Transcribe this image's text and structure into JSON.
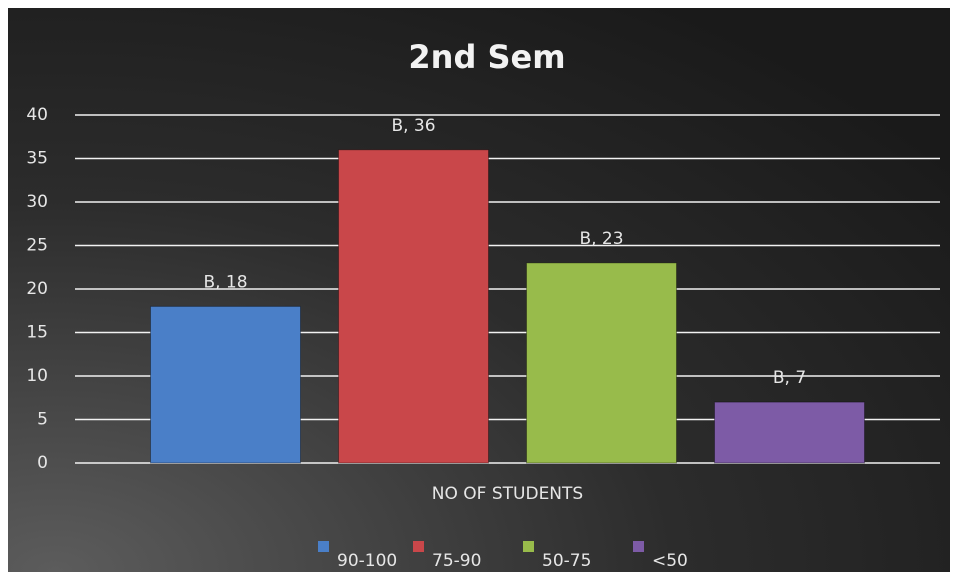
{
  "chart_data": {
    "type": "bar",
    "title": "2nd Sem",
    "categories": [
      "NO OF STUDENTS"
    ],
    "series": [
      {
        "name": "90-100",
        "color": "#4a7fc8",
        "values": [
          18
        ],
        "value_labels": [
          "B, 18"
        ]
      },
      {
        "name": "75-90",
        "color": "#c9474a",
        "values": [
          36
        ],
        "value_labels": [
          "B, 36"
        ]
      },
      {
        "name": "50-75",
        "color": "#98bb4b",
        "values": [
          23
        ],
        "value_labels": [
          "B, 23"
        ]
      },
      {
        "name": "<50",
        "color": "#7d5ba6",
        "values": [
          7
        ],
        "value_labels": [
          "B, 7"
        ]
      }
    ],
    "ylim": [
      0,
      40
    ],
    "yticks": [
      0,
      5,
      10,
      15,
      20,
      25,
      30,
      35,
      40
    ],
    "grid": true,
    "legend": "bottom"
  }
}
